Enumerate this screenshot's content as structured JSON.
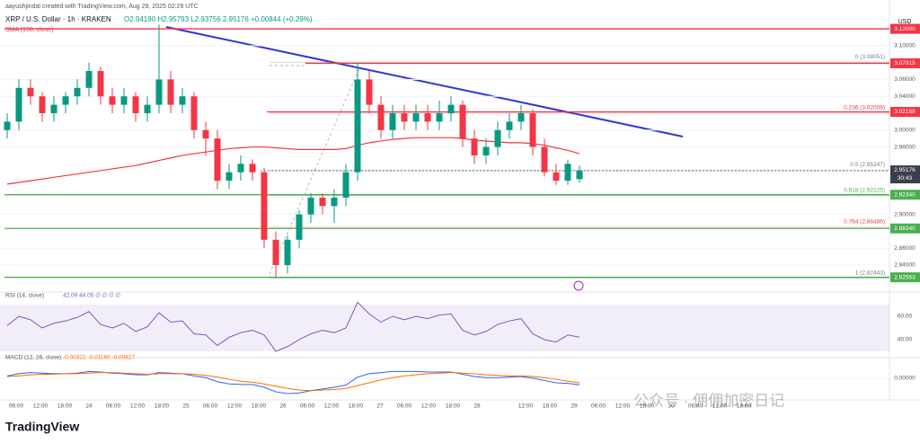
{
  "header": {
    "author_line": "aayushjindal created with TradingView.com, Aug 29, 2025 02:29 UTC",
    "symbol_line": "XRP / U.S. Dollar · 1h · KRAKEN",
    "ohlc": "O2.94190 H2.95793 L2.93756 2.95176 +0.00844 (+0.29%)",
    "sma_label": "SMA (100, close)"
  },
  "chart_data": [
    {
      "type": "candlestick",
      "axis_label": "USD",
      "ylim": [
        2.8155,
        3.135
      ],
      "yticks": [
        {
          "value": 3.12,
          "label": "3.12000"
        },
        {
          "value": 3.1,
          "label": "3.10000"
        },
        {
          "value": 3.06,
          "label": "3.06000"
        },
        {
          "value": 3.04,
          "label": "3.04000"
        },
        {
          "value": 3.0,
          "label": "3.00000"
        },
        {
          "value": 2.98,
          "label": "2.98000"
        },
        {
          "value": 2.9,
          "label": "2.90000"
        },
        {
          "value": 2.86,
          "label": "2.86000"
        },
        {
          "value": 2.84,
          "label": "2.84000"
        }
      ],
      "up_color": "#089981",
      "down_color": "#f23645",
      "candles": [
        [
          3.0,
          3.02,
          2.99,
          3.01
        ],
        [
          3.01,
          3.06,
          3.0,
          3.05
        ],
        [
          3.05,
          3.06,
          3.03,
          3.04
        ],
        [
          3.04,
          3.045,
          3.01,
          3.02
        ],
        [
          3.02,
          3.04,
          3.01,
          3.03
        ],
        [
          3.03,
          3.045,
          3.02,
          3.04
        ],
        [
          3.04,
          3.06,
          3.03,
          3.05
        ],
        [
          3.05,
          3.08,
          3.04,
          3.07
        ],
        [
          3.07,
          3.075,
          3.03,
          3.04
        ],
        [
          3.04,
          3.05,
          3.02,
          3.03
        ],
        [
          3.03,
          3.05,
          3.02,
          3.04
        ],
        [
          3.04,
          3.045,
          3.01,
          3.02
        ],
        [
          3.02,
          3.04,
          3.01,
          3.03
        ],
        [
          3.03,
          3.125,
          3.02,
          3.06
        ],
        [
          3.06,
          3.07,
          3.02,
          3.03
        ],
        [
          3.03,
          3.05,
          3.02,
          3.04
        ],
        [
          3.04,
          3.045,
          2.99,
          3.0
        ],
        [
          3.0,
          3.01,
          2.97,
          2.99
        ],
        [
          2.99,
          3.0,
          2.93,
          2.94
        ],
        [
          2.94,
          2.96,
          2.93,
          2.95
        ],
        [
          2.95,
          2.97,
          2.94,
          2.96
        ],
        [
          2.96,
          2.965,
          2.94,
          2.95
        ],
        [
          2.95,
          2.955,
          2.86,
          2.87
        ],
        [
          2.87,
          2.88,
          2.825,
          2.84
        ],
        [
          2.84,
          2.875,
          2.83,
          2.87
        ],
        [
          2.87,
          2.905,
          2.86,
          2.9
        ],
        [
          2.9,
          2.925,
          2.89,
          2.92
        ],
        [
          2.92,
          2.925,
          2.9,
          2.91
        ],
        [
          2.91,
          2.93,
          2.89,
          2.92
        ],
        [
          2.92,
          2.96,
          2.91,
          2.95
        ],
        [
          2.95,
          3.08,
          2.94,
          3.06
        ],
        [
          3.06,
          3.07,
          3.02,
          3.03
        ],
        [
          3.03,
          3.04,
          2.99,
          3.0
        ],
        [
          3.0,
          3.03,
          2.99,
          3.02
        ],
        [
          3.02,
          3.03,
          3.0,
          3.01
        ],
        [
          3.01,
          3.03,
          3.0,
          3.02
        ],
        [
          3.02,
          3.03,
          3.0,
          3.01
        ],
        [
          3.01,
          3.035,
          3.0,
          3.02
        ],
        [
          3.02,
          3.04,
          3.01,
          3.03
        ],
        [
          3.03,
          3.035,
          2.98,
          2.99
        ],
        [
          2.99,
          3.0,
          2.96,
          2.97
        ],
        [
          2.97,
          2.99,
          2.96,
          2.98
        ],
        [
          2.98,
          3.01,
          2.97,
          3.0
        ],
        [
          3.0,
          3.02,
          2.99,
          3.01
        ],
        [
          3.01,
          3.03,
          3.0,
          3.02
        ],
        [
          3.02,
          3.025,
          2.97,
          2.98
        ],
        [
          2.98,
          2.99,
          2.945,
          2.95
        ],
        [
          2.95,
          2.96,
          2.935,
          2.94
        ],
        [
          2.94,
          2.965,
          2.935,
          2.96
        ],
        [
          2.9419,
          2.95793,
          2.93756,
          2.95176
        ]
      ],
      "sma": {
        "color": "#f23645",
        "values": [
          2.936,
          2.938,
          2.94,
          2.942,
          2.944,
          2.946,
          2.948,
          2.95,
          2.952,
          2.954,
          2.956,
          2.958,
          2.961,
          2.964,
          2.967,
          2.97,
          2.972,
          2.974,
          2.976,
          2.978,
          2.979,
          2.98,
          2.98,
          2.979,
          2.978,
          2.977,
          2.977,
          2.977,
          2.977,
          2.978,
          2.982,
          2.985,
          2.987,
          2.989,
          2.99,
          2.991,
          2.991,
          2.991,
          2.991,
          2.99,
          2.988,
          2.987,
          2.986,
          2.985,
          2.985,
          2.984,
          2.982,
          2.979,
          2.976,
          2.972
        ]
      },
      "levels": [
        {
          "value": 3.12,
          "label": "3.12000",
          "color": "#f23645"
        },
        {
          "value": 3.07915,
          "label": "3.07915",
          "color": "#f23645"
        },
        {
          "value": 3.02158,
          "label": "3.02158",
          "color": "#f23645"
        },
        {
          "value": 2.9234,
          "label": "2.92340",
          "color": "#4caf50"
        },
        {
          "value": 2.8834,
          "label": "2.88340",
          "color": "#4caf50"
        },
        {
          "value": 2.82553,
          "label": "2.82553",
          "color": "#4caf50"
        }
      ],
      "fib": [
        {
          "value": 3.08051,
          "label": "0 (3.08051)",
          "color": "#787b86"
        },
        {
          "value": 3.02008,
          "label": "0.236 (3.02008)",
          "color": "#f23645"
        },
        {
          "value": 2.95247,
          "label": "0.5 (2.95247)",
          "color": "#787b86"
        },
        {
          "value": 2.92225,
          "label": "0.618 (2.92225)",
          "color": "#4caf50"
        },
        {
          "value": 2.88486,
          "label": "0.764 (2.88486)",
          "color": "#f23645"
        },
        {
          "value": 2.82443,
          "label": "1 (2.82443)",
          "color": "#787b86"
        }
      ],
      "current_price": 2.95176,
      "countdown": "30:43",
      "x_tick_labels": [
        "06:00",
        "12:00",
        "18:00",
        "24",
        "06:00",
        "12:00",
        "18:00",
        "25",
        "06:00",
        "12:00",
        "18:00",
        "26",
        "06:00",
        "12:00",
        "18:00",
        "27",
        "06:00",
        "12:00",
        "18:00",
        "28",
        null,
        "12:00",
        "18:00",
        "29",
        "06:00",
        "12:00",
        "18:00",
        "30",
        "06:00",
        "12:00",
        "18:00"
      ]
    },
    {
      "type": "line",
      "title": "RSI (14, close)",
      "legend_values": "42.09  44.05  ∅  ∅  ∅  ∅",
      "ylim": [
        26.9,
        74.6
      ],
      "band": [
        30,
        70
      ],
      "yticks": [
        {
          "value": 60,
          "label": "60.00"
        },
        {
          "value": 40,
          "label": "40.00"
        }
      ],
      "series": [
        {
          "color": "#7e57c2",
          "values": [
            52,
            60,
            57,
            50,
            54,
            56,
            59,
            64,
            53,
            50,
            54,
            47,
            51,
            63,
            55,
            56,
            45,
            44,
            35,
            42,
            46,
            48,
            44,
            30,
            34,
            40,
            45,
            48,
            46,
            50,
            72,
            62,
            55,
            60,
            57,
            60,
            58,
            61,
            62,
            48,
            44,
            47,
            53,
            56,
            58,
            45,
            40,
            38,
            44,
            42.09
          ]
        }
      ]
    },
    {
      "type": "line",
      "title": "MACD (12, 26, close)",
      "legend_values": "-0.00322  -0.01160  -0.00827",
      "ylim": [
        -0.035,
        0.03
      ],
      "yticks": [
        {
          "value": 0,
          "label": "0.00000"
        }
      ],
      "series": [
        {
          "color": "#2962ff",
          "values": [
            0.004,
            0.008,
            0.01,
            0.009,
            0.008,
            0.008,
            0.009,
            0.012,
            0.011,
            0.009,
            0.008,
            0.006,
            0.006,
            0.01,
            0.009,
            0.008,
            0.004,
            0.001,
            -0.006,
            -0.01,
            -0.011,
            -0.011,
            -0.016,
            -0.024,
            -0.027,
            -0.026,
            -0.022,
            -0.019,
            -0.016,
            -0.012,
            0.002,
            0.008,
            0.01,
            0.012,
            0.012,
            0.012,
            0.011,
            0.011,
            0.011,
            0.007,
            0.003,
            0.001,
            0.001,
            0.002,
            0.003,
            0.0,
            -0.004,
            -0.008,
            -0.009,
            -0.0116
          ]
        },
        {
          "color": "#ff6d00",
          "values": [
            0.003,
            0.004,
            0.006,
            0.007,
            0.007,
            0.008,
            0.008,
            0.009,
            0.01,
            0.01,
            0.009,
            0.008,
            0.007,
            0.008,
            0.008,
            0.008,
            0.007,
            0.005,
            0.002,
            -0.002,
            -0.005,
            -0.007,
            -0.01,
            -0.014,
            -0.018,
            -0.021,
            -0.022,
            -0.021,
            -0.02,
            -0.018,
            -0.013,
            -0.008,
            -0.003,
            0.001,
            0.004,
            0.006,
            0.008,
            0.009,
            0.01,
            0.009,
            0.008,
            0.006,
            0.005,
            0.004,
            0.004,
            0.003,
            0.001,
            -0.002,
            -0.005,
            -0.00827
          ]
        }
      ]
    }
  ],
  "branding": "TradingView",
  "watermark": "公众号 · 佣佣加密日记"
}
